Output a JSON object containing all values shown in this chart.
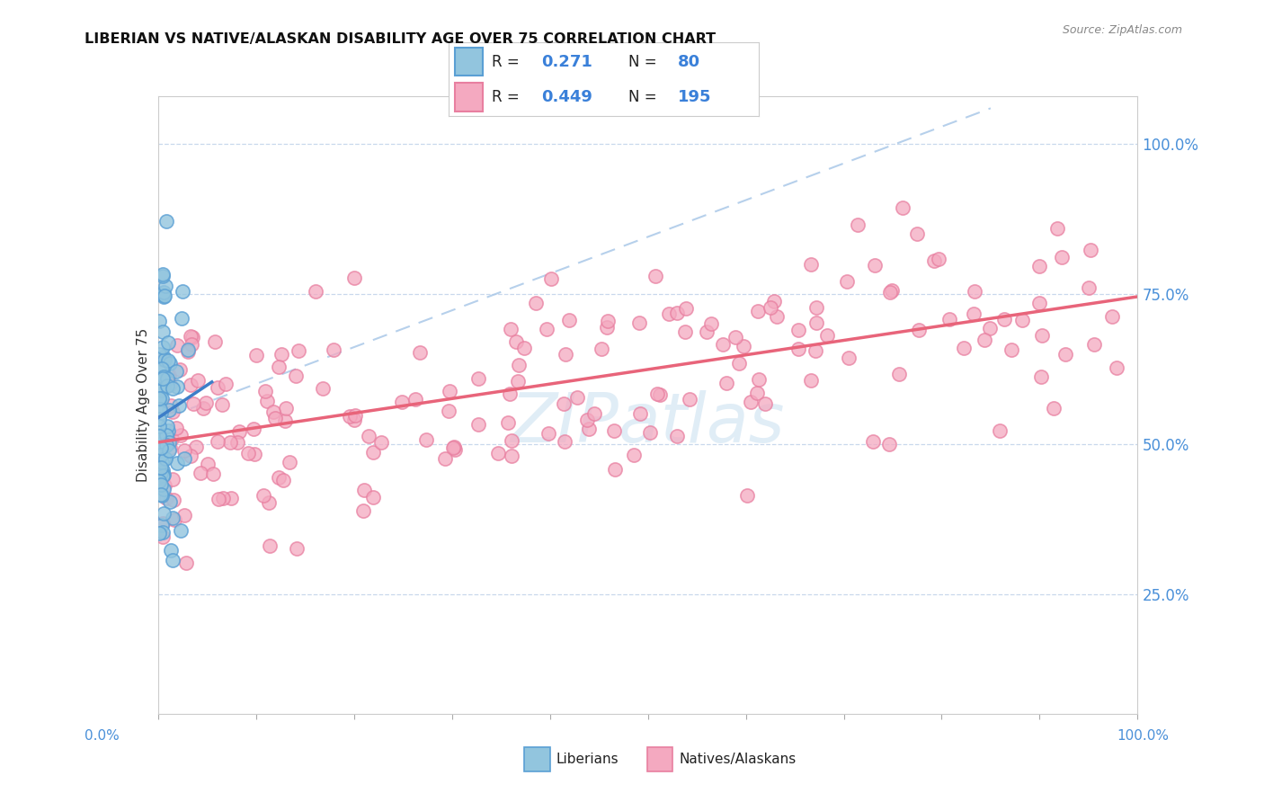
{
  "title": "LIBERIAN VS NATIVE/ALASKAN DISABILITY AGE OVER 75 CORRELATION CHART",
  "source": "Source: ZipAtlas.com",
  "ylabel": "Disability Age Over 75",
  "legend_label1": "Liberians",
  "legend_label2": "Natives/Alaskans",
  "R1": "0.271",
  "N1": "80",
  "R2": "0.449",
  "N2": "195",
  "color_blue": "#92c5de",
  "color_blue_edge": "#5a9fd4",
  "color_pink": "#f4a9c0",
  "color_pink_edge": "#e87fa0",
  "color_trend_blue": "#3d7ec8",
  "color_trend_pink": "#e8647a",
  "color_dash": "#aac8e8",
  "watermark_color": "#c8dff0",
  "bg_color": "#ffffff",
  "ytick_positions": [
    0.25,
    0.5,
    0.75,
    1.0
  ],
  "ytick_labels": [
    "25.0%",
    "50.0%",
    "75.0%",
    "100.0%"
  ],
  "xlim": [
    0.0,
    1.0
  ],
  "ylim": [
    0.05,
    1.08
  ]
}
